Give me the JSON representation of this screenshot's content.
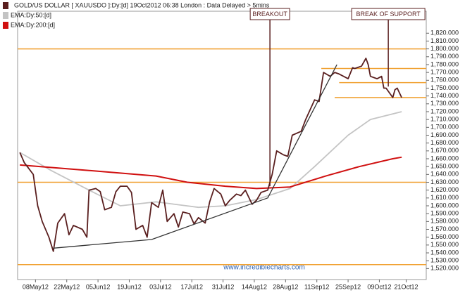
{
  "chart_data": {
    "type": "line",
    "title": "GOLD/US DOLLAR [ XAUUSDO ]:Dy:[d]  19Oct2012 06:38 London : Data Delayed > 5mins",
    "watermark": "www.incrediblecharts.com",
    "xlim": [
      "2012-04-30",
      "2012-10-30"
    ],
    "xticks": [
      {
        "value": "2012-05-08",
        "label": "08May12"
      },
      {
        "value": "2012-05-22",
        "label": "22May12"
      },
      {
        "value": "2012-06-05",
        "label": "05Jun12"
      },
      {
        "value": "2012-06-19",
        "label": "19Jun12"
      },
      {
        "value": "2012-07-03",
        "label": "03Jul12"
      },
      {
        "value": "2012-07-17",
        "label": "17Jul12"
      },
      {
        "value": "2012-07-31",
        "label": "31Jul12"
      },
      {
        "value": "2012-08-14",
        "label": "14Aug12"
      },
      {
        "value": "2012-08-28",
        "label": "28Aug12"
      },
      {
        "value": "2012-09-11",
        "label": "11Sep12"
      },
      {
        "value": "2012-09-25",
        "label": "25Sep12"
      },
      {
        "value": "2012-10-09",
        "label": "09Oct12"
      },
      {
        "value": "2012-10-21",
        "label": "21Oct12"
      }
    ],
    "ylim": [
      1506,
      1848
    ],
    "yticks": [
      {
        "value": 1520,
        "label": "1,520.000"
      },
      {
        "value": 1530,
        "label": "1,530.000"
      },
      {
        "value": 1540,
        "label": "1,540.000"
      },
      {
        "value": 1550,
        "label": "1,550.000"
      },
      {
        "value": 1560,
        "label": "1,560.000"
      },
      {
        "value": 1570,
        "label": "1,570.000"
      },
      {
        "value": 1580,
        "label": "1,580.000"
      },
      {
        "value": 1590,
        "label": "1,590.000"
      },
      {
        "value": 1600,
        "label": "1,600.000"
      },
      {
        "value": 1610,
        "label": "1,610.000"
      },
      {
        "value": 1620,
        "label": "1,620.000"
      },
      {
        "value": 1630,
        "label": "1,630.000"
      },
      {
        "value": 1640,
        "label": "1,640.000"
      },
      {
        "value": 1650,
        "label": "1,650.000"
      },
      {
        "value": 1660,
        "label": "1,660.000"
      },
      {
        "value": 1670,
        "label": "1,670.000"
      },
      {
        "value": 1680,
        "label": "1,680.000"
      },
      {
        "value": 1690,
        "label": "1,690.000"
      },
      {
        "value": 1700,
        "label": "1,700.000"
      },
      {
        "value": 1710,
        "label": "1,710.000"
      },
      {
        "value": 1720,
        "label": "1,720.000"
      },
      {
        "value": 1730,
        "label": "1,730.000"
      },
      {
        "value": 1740,
        "label": "1,740.000"
      },
      {
        "value": 1750,
        "label": "1,750.000"
      },
      {
        "value": 1760,
        "label": "1,760.000"
      },
      {
        "value": 1770,
        "label": "1,770.000"
      },
      {
        "value": 1780,
        "label": "1,780.000"
      },
      {
        "value": 1790,
        "label": "1,790.000"
      },
      {
        "value": 1800,
        "label": "1,800.000"
      },
      {
        "value": 1810,
        "label": "1,810.000"
      },
      {
        "value": 1820,
        "label": "1,820.000"
      }
    ],
    "series": [
      {
        "name": "GOLD/US DOLLAR [ XAUUSDO ]:Dy:[d]",
        "color": "#5a1f1f",
        "x": [
          "2012-05-01",
          "2012-05-03",
          "2012-05-07",
          "2012-05-09",
          "2012-05-11",
          "2012-05-14",
          "2012-05-16",
          "2012-05-18",
          "2012-05-21",
          "2012-05-23",
          "2012-05-25",
          "2012-05-29",
          "2012-05-31",
          "2012-06-01",
          "2012-06-04",
          "2012-06-06",
          "2012-06-08",
          "2012-06-11",
          "2012-06-13",
          "2012-06-15",
          "2012-06-18",
          "2012-06-20",
          "2012-06-22",
          "2012-06-25",
          "2012-06-27",
          "2012-06-29",
          "2012-07-02",
          "2012-07-04",
          "2012-07-06",
          "2012-07-09",
          "2012-07-11",
          "2012-07-13",
          "2012-07-16",
          "2012-07-18",
          "2012-07-20",
          "2012-07-23",
          "2012-07-25",
          "2012-07-27",
          "2012-07-30",
          "2012-08-01",
          "2012-08-03",
          "2012-08-06",
          "2012-08-08",
          "2012-08-10",
          "2012-08-13",
          "2012-08-15",
          "2012-08-17",
          "2012-08-20",
          "2012-08-22",
          "2012-08-24",
          "2012-08-27",
          "2012-08-29",
          "2012-08-31",
          "2012-09-04",
          "2012-09-06",
          "2012-09-10",
          "2012-09-12",
          "2012-09-14",
          "2012-09-17",
          "2012-09-19",
          "2012-09-21",
          "2012-09-25",
          "2012-09-27",
          "2012-09-28",
          "2012-10-01",
          "2012-10-03",
          "2012-10-04",
          "2012-10-05",
          "2012-10-08",
          "2012-10-10",
          "2012-10-11",
          "2012-10-12",
          "2012-10-15",
          "2012-10-16",
          "2012-10-17",
          "2012-10-19"
        ],
        "values": [
          1668,
          1655,
          1640,
          1600,
          1580,
          1560,
          1542,
          1578,
          1590,
          1563,
          1575,
          1570,
          1560,
          1620,
          1622,
          1618,
          1595,
          1598,
          1618,
          1625,
          1625,
          1617,
          1570,
          1575,
          1560,
          1604,
          1598,
          1620,
          1580,
          1590,
          1573,
          1592,
          1590,
          1577,
          1585,
          1578,
          1605,
          1622,
          1615,
          1600,
          1607,
          1615,
          1613,
          1620,
          1602,
          1607,
          1617,
          1620,
          1640,
          1670,
          1665,
          1663,
          1690,
          1695,
          1710,
          1735,
          1733,
          1770,
          1765,
          1770,
          1768,
          1762,
          1776,
          1775,
          1778,
          1788,
          1780,
          1765,
          1762,
          1765,
          1750,
          1750,
          1738,
          1748,
          1750,
          1738
        ]
      },
      {
        "name": "EMA:Dy:50:[d]",
        "color": "#c4c4c4",
        "x": [
          "2012-05-01",
          "2012-05-15",
          "2012-06-01",
          "2012-06-15",
          "2012-07-01",
          "2012-07-20",
          "2012-08-01",
          "2012-08-15",
          "2012-08-30",
          "2012-09-10",
          "2012-09-25",
          "2012-10-05",
          "2012-10-19"
        ],
        "values": [
          1668,
          1645,
          1620,
          1600,
          1605,
          1598,
          1600,
          1608,
          1622,
          1650,
          1690,
          1710,
          1720
        ]
      },
      {
        "name": "EMA:Dy:200:[d]",
        "color": "#d01010",
        "x": [
          "2012-05-01",
          "2012-06-01",
          "2012-07-01",
          "2012-07-15",
          "2012-08-01",
          "2012-08-15",
          "2012-08-30",
          "2012-09-15",
          "2012-09-30",
          "2012-10-15",
          "2012-10-19"
        ],
        "values": [
          1652,
          1645,
          1638,
          1630,
          1625,
          1622,
          1624,
          1638,
          1650,
          1660,
          1662
        ]
      }
    ],
    "levels": [
      {
        "value": 1800
      },
      {
        "value": 1630
      },
      {
        "value": 1525
      },
      {
        "value": 1775,
        "from": "2012-09-13"
      },
      {
        "value": 1757,
        "from": "2012-09-21"
      },
      {
        "value": 1738,
        "from": "2012-09-19"
      }
    ],
    "trendline": {
      "x": [
        "2012-05-16",
        "2012-06-29",
        "2012-08-20",
        "2012-09-20"
      ],
      "values": [
        1546,
        1557,
        1610,
        1780
      ]
    },
    "annotations": [
      {
        "text": "BREAKOUT",
        "x": "2012-08-21",
        "value": 1625
      },
      {
        "text": "BREAK OF SUPPORT",
        "x": "2012-10-13",
        "value": 1752
      }
    ]
  }
}
